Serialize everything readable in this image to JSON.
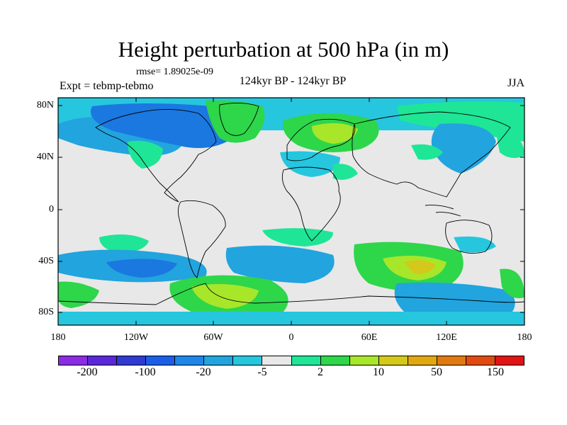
{
  "title": "Height perturbation at 500 hPa (in m)",
  "rmse": "rmse= 1.89025e-09",
  "expt": "Expt = tebmp-tebmo",
  "period": "124kyr BP - 124kyr BP",
  "season": "JJA",
  "lat_labels": [
    "80N",
    "40N",
    "0",
    "40S",
    "80S"
  ],
  "lon_labels": [
    "180",
    "120W",
    "60W",
    "0",
    "60E",
    "120E",
    "180"
  ],
  "colorbar": {
    "labels": [
      "-200",
      "-100",
      "-20",
      "-5",
      "2",
      "10",
      "50",
      "150"
    ],
    "colors": [
      "#8b2be2",
      "#5a28d8",
      "#2e3ad0",
      "#1a5ee8",
      "#1e86e8",
      "#22a4de",
      "#26c6de",
      "#e8e8e8",
      "#1ee696",
      "#2ed64a",
      "#a8e62a",
      "#d4c81a",
      "#e0a80e",
      "#e07a10",
      "#e04a10",
      "#e01414"
    ]
  },
  "map_colors": {
    "background": "#e8e8e8",
    "light_blue": "#26c6de",
    "blue": "#22a4de",
    "deep_blue": "#1a78e0",
    "mint": "#1ee696",
    "green": "#2ed64a",
    "yellow_green": "#a8e62a",
    "olive": "#d4c81a",
    "orange": "#e0a80e"
  }
}
